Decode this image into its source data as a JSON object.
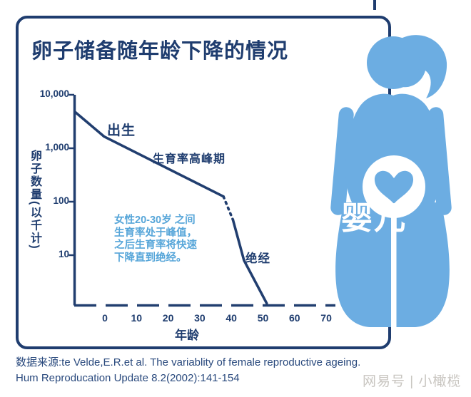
{
  "card": {
    "title": "卵子储备随年龄下降的情况",
    "border_color": "#1f3d6f"
  },
  "chart_data": {
    "type": "line",
    "title": "卵子储备随年龄下降的情况",
    "xlabel": "年龄",
    "ylabel": "卵子数量(以千计)",
    "y_scale": "log",
    "x_ticks": [
      0,
      10,
      20,
      30,
      40,
      50,
      60,
      70
    ],
    "y_ticks": [
      "10,000",
      "1,000",
      "100",
      "10"
    ],
    "xlim": [
      -9.5,
      70
    ],
    "ylim": [
      1,
      10000
    ],
    "grid": false,
    "line_color": "#213e6f",
    "series": [
      {
        "name": "prenatal-to-peak",
        "style": "solid",
        "points": [
          [
            -9.5,
            4800
          ],
          [
            -0.2,
            1650
          ],
          [
            37.5,
            125
          ]
        ]
      },
      {
        "name": "uncertain-gap",
        "style": "dotted",
        "points": [
          [
            37.5,
            125
          ],
          [
            40.5,
            46
          ]
        ]
      },
      {
        "name": "rapid-decline-to-menopause",
        "style": "solid",
        "points": [
          [
            40.5,
            46
          ],
          [
            44,
            8
          ],
          [
            51.2,
            1.25
          ]
        ]
      }
    ],
    "annotations": [
      {
        "id": "birth",
        "label": "出生",
        "x": 3,
        "y": 2500
      },
      {
        "id": "peak",
        "label": "生育率高峰期",
        "x": 20,
        "y": 700
      },
      {
        "id": "menopause",
        "label": "绝经",
        "x": 46,
        "y": 10
      }
    ]
  },
  "note": {
    "line1": "女性20-30岁 之间",
    "line2": "生育率处于峰值，",
    "line3": "之后生育率将快速",
    "line4": "下降直到绝经。",
    "color": "#57a6d9"
  },
  "source": {
    "line1": "数据来源:te Velde,E.R.et al. The variablity of female reproductive ageing.",
    "line2": "Hum Reproducation Update 8.2(2002):141-154"
  },
  "watermarks": {
    "figure_text": "婴儿",
    "brand": "网易号 | 小橄榄"
  },
  "figure": {
    "name": "pregnant-woman-silhouette",
    "color": "#6cade2",
    "belly_circle_color": "#ffffff",
    "heart_color": "#6cade2"
  }
}
